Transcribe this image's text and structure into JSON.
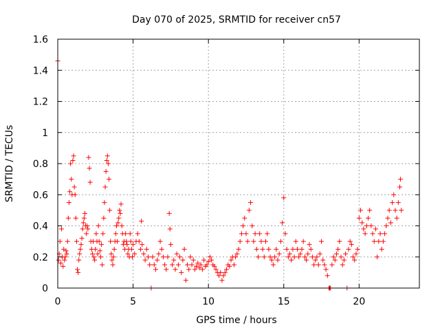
{
  "chart_data": {
    "type": "scatter",
    "title": "Day 070 of 2025, SRMTID for receiver cn57",
    "xlabel": "GPS time / hours",
    "ylabel": "SRMTID / TECUs",
    "xlim": [
      0,
      24
    ],
    "ylim": [
      0,
      1.6
    ],
    "grid": true,
    "marker": "+",
    "color": "#ff0000",
    "xticks": [
      {
        "value": 0,
        "label": "0"
      },
      {
        "value": 5,
        "label": "5"
      },
      {
        "value": 10,
        "label": "10"
      },
      {
        "value": 15,
        "label": "15"
      },
      {
        "value": 20,
        "label": "20"
      }
    ],
    "yticks": [
      {
        "value": 0,
        "label": "0"
      },
      {
        "value": 0.2,
        "label": "0.2"
      },
      {
        "value": 0.4,
        "label": "0.4"
      },
      {
        "value": 0.6,
        "label": "0.6"
      },
      {
        "value": 0.8,
        "label": "0.8"
      },
      {
        "value": 1.0,
        "label": "1"
      },
      {
        "value": 1.2,
        "label": "1.2"
      },
      {
        "value": 1.4,
        "label": "1.4"
      },
      {
        "value": 1.6,
        "label": "1.6"
      }
    ],
    "series": [
      {
        "name": "SRMTID",
        "points": [
          [
            0.0,
            1.46
          ],
          [
            0.05,
            0.18
          ],
          [
            0.1,
            0.22
          ],
          [
            0.15,
            0.3
          ],
          [
            0.2,
            0.16
          ],
          [
            0.25,
            0.38
          ],
          [
            0.3,
            0.2
          ],
          [
            0.35,
            0.14
          ],
          [
            0.4,
            0.25
          ],
          [
            0.45,
            0.18
          ],
          [
            0.5,
            0.2
          ],
          [
            0.55,
            0.24
          ],
          [
            0.6,
            0.22
          ],
          [
            0.65,
            0.3
          ],
          [
            0.7,
            0.45
          ],
          [
            0.75,
            0.55
          ],
          [
            0.8,
            0.62
          ],
          [
            0.85,
            0.8
          ],
          [
            0.9,
            0.7
          ],
          [
            0.95,
            0.6
          ],
          [
            1.0,
            0.82
          ],
          [
            1.05,
            0.85
          ],
          [
            1.1,
            0.65
          ],
          [
            1.15,
            0.6
          ],
          [
            1.2,
            0.45
          ],
          [
            1.25,
            0.3
          ],
          [
            1.3,
            0.12
          ],
          [
            1.35,
            0.1
          ],
          [
            1.4,
            0.18
          ],
          [
            1.45,
            0.22
          ],
          [
            1.5,
            0.25
          ],
          [
            1.55,
            0.28
          ],
          [
            1.6,
            0.32
          ],
          [
            1.65,
            0.38
          ],
          [
            1.7,
            0.42
          ],
          [
            1.75,
            0.45
          ],
          [
            1.8,
            0.48
          ],
          [
            1.85,
            0.4
          ],
          [
            1.9,
            0.35
          ],
          [
            1.95,
            0.4
          ],
          [
            2.0,
            0.38
          ],
          [
            2.05,
            0.84
          ],
          [
            2.1,
            0.77
          ],
          [
            2.15,
            0.68
          ],
          [
            2.2,
            0.3
          ],
          [
            2.25,
            0.25
          ],
          [
            2.3,
            0.22
          ],
          [
            2.35,
            0.3
          ],
          [
            2.4,
            0.2
          ],
          [
            2.45,
            0.18
          ],
          [
            2.5,
            0.25
          ],
          [
            2.55,
            0.35
          ],
          [
            2.6,
            0.3
          ],
          [
            2.65,
            0.22
          ],
          [
            2.7,
            0.4
          ],
          [
            2.75,
            0.3
          ],
          [
            2.8,
            0.24
          ],
          [
            2.85,
            0.2
          ],
          [
            2.9,
            0.28
          ],
          [
            2.95,
            0.15
          ],
          [
            3.0,
            0.35
          ],
          [
            3.05,
            0.45
          ],
          [
            3.1,
            0.55
          ],
          [
            3.15,
            0.65
          ],
          [
            3.2,
            0.75
          ],
          [
            3.25,
            0.82
          ],
          [
            3.3,
            0.85
          ],
          [
            3.35,
            0.8
          ],
          [
            3.4,
            0.7
          ],
          [
            3.45,
            0.5
          ],
          [
            3.5,
            0.3
          ],
          [
            3.55,
            0.22
          ],
          [
            3.6,
            0.18
          ],
          [
            3.65,
            0.15
          ],
          [
            3.7,
            0.2
          ],
          [
            3.75,
            0.25
          ],
          [
            3.8,
            0.3
          ],
          [
            3.85,
            0.35
          ],
          [
            3.9,
            0.4
          ],
          [
            3.95,
            0.3
          ],
          [
            4.0,
            0.42
          ],
          [
            4.05,
            0.45
          ],
          [
            4.1,
            0.5
          ],
          [
            4.15,
            0.48
          ],
          [
            4.2,
            0.54
          ],
          [
            4.25,
            0.4
          ],
          [
            4.3,
            0.35
          ],
          [
            4.35,
            0.28
          ],
          [
            4.4,
            0.3
          ],
          [
            4.45,
            0.25
          ],
          [
            4.5,
            0.35
          ],
          [
            4.55,
            0.3
          ],
          [
            4.6,
            0.28
          ],
          [
            4.65,
            0.22
          ],
          [
            4.7,
            0.25
          ],
          [
            4.75,
            0.2
          ],
          [
            4.8,
            0.35
          ],
          [
            4.85,
            0.3
          ],
          [
            4.9,
            0.25
          ],
          [
            4.95,
            0.2
          ],
          [
            5.0,
            0.28
          ],
          [
            5.1,
            0.22
          ],
          [
            5.2,
            0.3
          ],
          [
            5.3,
            0.35
          ],
          [
            5.4,
            0.3
          ],
          [
            5.5,
            0.25
          ],
          [
            5.55,
            0.43
          ],
          [
            5.6,
            0.28
          ],
          [
            5.7,
            0.22
          ],
          [
            5.8,
            0.18
          ],
          [
            5.9,
            0.25
          ],
          [
            6.0,
            0.2
          ],
          [
            6.1,
            0.15
          ],
          [
            6.2,
            0.0
          ],
          [
            6.3,
            0.2
          ],
          [
            6.4,
            0.15
          ],
          [
            6.5,
            0.12
          ],
          [
            6.6,
            0.18
          ],
          [
            6.7,
            0.22
          ],
          [
            6.8,
            0.3
          ],
          [
            6.9,
            0.25
          ],
          [
            7.0,
            0.2
          ],
          [
            7.1,
            0.15
          ],
          [
            7.2,
            0.12
          ],
          [
            7.3,
            0.2
          ],
          [
            7.4,
            0.48
          ],
          [
            7.45,
            0.38
          ],
          [
            7.5,
            0.28
          ],
          [
            7.6,
            0.15
          ],
          [
            7.7,
            0.18
          ],
          [
            7.8,
            0.12
          ],
          [
            7.9,
            0.22
          ],
          [
            8.0,
            0.15
          ],
          [
            8.1,
            0.2
          ],
          [
            8.2,
            0.1
          ],
          [
            8.3,
            0.18
          ],
          [
            8.4,
            0.25
          ],
          [
            8.5,
            0.05
          ],
          [
            8.6,
            0.15
          ],
          [
            8.7,
            0.12
          ],
          [
            8.8,
            0.2
          ],
          [
            8.9,
            0.15
          ],
          [
            9.0,
            0.18
          ],
          [
            9.1,
            0.12
          ],
          [
            9.2,
            0.14
          ],
          [
            9.3,
            0.16
          ],
          [
            9.4,
            0.13
          ],
          [
            9.5,
            0.15
          ],
          [
            9.6,
            0.12
          ],
          [
            9.7,
            0.18
          ],
          [
            9.8,
            0.14
          ],
          [
            9.9,
            0.15
          ],
          [
            10.0,
            0.17
          ],
          [
            10.1,
            0.2
          ],
          [
            10.2,
            0.18
          ],
          [
            10.3,
            0.15
          ],
          [
            10.4,
            0.14
          ],
          [
            10.5,
            0.12
          ],
          [
            10.6,
            0.1
          ],
          [
            10.7,
            0.08
          ],
          [
            10.8,
            0.1
          ],
          [
            10.9,
            0.05
          ],
          [
            11.0,
            0.08
          ],
          [
            11.1,
            0.1
          ],
          [
            11.2,
            0.12
          ],
          [
            11.3,
            0.15
          ],
          [
            11.4,
            0.14
          ],
          [
            11.5,
            0.18
          ],
          [
            11.6,
            0.2
          ],
          [
            11.7,
            0.15
          ],
          [
            11.8,
            0.2
          ],
          [
            11.9,
            0.22
          ],
          [
            12.0,
            0.25
          ],
          [
            12.1,
            0.3
          ],
          [
            12.2,
            0.35
          ],
          [
            12.3,
            0.4
          ],
          [
            12.4,
            0.45
          ],
          [
            12.5,
            0.35
          ],
          [
            12.6,
            0.3
          ],
          [
            12.7,
            0.5
          ],
          [
            12.8,
            0.55
          ],
          [
            12.9,
            0.4
          ],
          [
            13.0,
            0.3
          ],
          [
            13.1,
            0.35
          ],
          [
            13.2,
            0.25
          ],
          [
            13.3,
            0.2
          ],
          [
            13.4,
            0.35
          ],
          [
            13.5,
            0.3
          ],
          [
            13.6,
            0.25
          ],
          [
            13.7,
            0.2
          ],
          [
            13.8,
            0.3
          ],
          [
            13.9,
            0.35
          ],
          [
            14.0,
            0.25
          ],
          [
            14.1,
            0.2
          ],
          [
            14.2,
            0.18
          ],
          [
            14.3,
            0.15
          ],
          [
            14.4,
            0.2
          ],
          [
            14.5,
            0.25
          ],
          [
            14.6,
            0.18
          ],
          [
            14.7,
            0.22
          ],
          [
            14.8,
            0.3
          ],
          [
            14.9,
            0.42
          ],
          [
            15.0,
            0.58
          ],
          [
            15.1,
            0.35
          ],
          [
            15.2,
            0.25
          ],
          [
            15.3,
            0.2
          ],
          [
            15.4,
            0.22
          ],
          [
            15.5,
            0.18
          ],
          [
            15.6,
            0.25
          ],
          [
            15.7,
            0.2
          ],
          [
            15.8,
            0.3
          ],
          [
            15.9,
            0.25
          ],
          [
            16.0,
            0.2
          ],
          [
            16.1,
            0.22
          ],
          [
            16.2,
            0.25
          ],
          [
            16.3,
            0.3
          ],
          [
            16.4,
            0.2
          ],
          [
            16.5,
            0.18
          ],
          [
            16.6,
            0.22
          ],
          [
            16.7,
            0.28
          ],
          [
            16.8,
            0.25
          ],
          [
            16.9,
            0.2
          ],
          [
            17.0,
            0.15
          ],
          [
            17.1,
            0.18
          ],
          [
            17.2,
            0.2
          ],
          [
            17.3,
            0.15
          ],
          [
            17.4,
            0.22
          ],
          [
            17.5,
            0.3
          ],
          [
            17.6,
            0.18
          ],
          [
            17.7,
            0.15
          ],
          [
            17.8,
            0.12
          ],
          [
            17.9,
            0.08
          ],
          [
            18.0,
            0.0
          ],
          [
            18.05,
            0.0
          ],
          [
            18.1,
            0.0
          ],
          [
            18.2,
            0.15
          ],
          [
            18.3,
            0.2
          ],
          [
            18.4,
            0.18
          ],
          [
            18.5,
            0.22
          ],
          [
            18.6,
            0.25
          ],
          [
            18.7,
            0.3
          ],
          [
            18.8,
            0.2
          ],
          [
            18.9,
            0.15
          ],
          [
            19.0,
            0.18
          ],
          [
            19.1,
            0.22
          ],
          [
            19.2,
            0.0
          ],
          [
            19.3,
            0.25
          ],
          [
            19.4,
            0.3
          ],
          [
            19.5,
            0.28
          ],
          [
            19.6,
            0.2
          ],
          [
            19.7,
            0.18
          ],
          [
            19.8,
            0.22
          ],
          [
            19.9,
            0.25
          ],
          [
            20.0,
            0.45
          ],
          [
            20.1,
            0.5
          ],
          [
            20.2,
            0.42
          ],
          [
            20.3,
            0.38
          ],
          [
            20.4,
            0.35
          ],
          [
            20.5,
            0.4
          ],
          [
            20.6,
            0.45
          ],
          [
            20.7,
            0.5
          ],
          [
            20.8,
            0.4
          ],
          [
            20.9,
            0.35
          ],
          [
            21.0,
            0.3
          ],
          [
            21.1,
            0.38
          ],
          [
            21.2,
            0.2
          ],
          [
            21.3,
            0.3
          ],
          [
            21.4,
            0.35
          ],
          [
            21.5,
            0.25
          ],
          [
            21.6,
            0.3
          ],
          [
            21.7,
            0.35
          ],
          [
            21.8,
            0.4
          ],
          [
            21.9,
            0.45
          ],
          [
            22.0,
            0.5
          ],
          [
            22.1,
            0.42
          ],
          [
            22.2,
            0.55
          ],
          [
            22.3,
            0.6
          ],
          [
            22.4,
            0.5
          ],
          [
            22.5,
            0.45
          ],
          [
            22.6,
            0.55
          ],
          [
            22.7,
            0.65
          ],
          [
            22.75,
            0.7
          ],
          [
            22.8,
            0.5
          ]
        ]
      }
    ]
  }
}
